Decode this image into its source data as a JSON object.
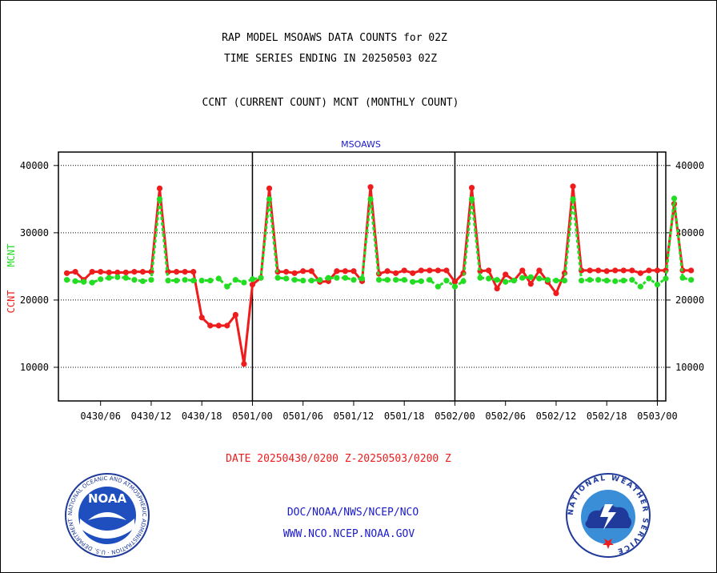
{
  "header": {
    "title_line1": "RAP MODEL MSOAWS DATA COUNTS for 02Z",
    "title_line2": "TIME SERIES ENDING IN 20250503 02Z",
    "legend_line": "CCNT (CURRENT COUNT) MCNT (MONTHLY COUNT)"
  },
  "footer": {
    "date_range": "DATE 20250430/0200 Z-20250503/0200 Z",
    "org_line": "DOC/NOAA/NWS/NCEP/NCO",
    "url_line": "WWW.NCO.NCEP.NOAA.GOV",
    "noaa_logo_text": "NOAA",
    "noaa_ring_text": "NATIONAL OCEANIC AND ATMOSPHERIC ADMINISTRATION · U.S. DEPARTMENT OF COMMERCE ·",
    "nws_ring_text": "NATIONAL WEATHER SERVICE"
  },
  "colors": {
    "ccnt": "#ee1c1c",
    "mcnt": "#22dd22",
    "title": "#000000",
    "date_text": "#ee1c1c",
    "org_text": "#1a1acc"
  },
  "chart_data": {
    "type": "line",
    "title": "MSOAWS",
    "ylabel_parts": [
      {
        "text": "CCNT",
        "color": "#ee1c1c"
      },
      {
        "text": "MCNT",
        "color": "#22dd22"
      }
    ],
    "x_tick_labels": [
      "0430/06",
      "0430/12",
      "0430/18",
      "0501/00",
      "0501/06",
      "0501/12",
      "0501/18",
      "0502/00",
      "0502/06",
      "0502/12",
      "0502/18",
      "0503/00"
    ],
    "x_tick_hours": [
      4,
      10,
      16,
      22,
      28,
      34,
      40,
      46,
      52,
      58,
      64,
      70
    ],
    "x_range_hours": [
      -1,
      71
    ],
    "day_boundaries_hours": [
      22,
      46,
      70
    ],
    "ylim": [
      5000,
      42000
    ],
    "y_ticks": [
      10000,
      20000,
      30000,
      40000
    ],
    "grid": "horizontal dotted",
    "series": [
      {
        "name": "CCNT",
        "color": "#ee1c1c",
        "values": [
          24000,
          24200,
          23000,
          24200,
          24200,
          24100,
          24100,
          24100,
          24200,
          24200,
          24200,
          36600,
          24200,
          24200,
          24200,
          24200,
          17400,
          16200,
          16200,
          16200,
          17800,
          10500,
          22300,
          23300,
          36600,
          24200,
          24200,
          24000,
          24300,
          24300,
          22700,
          22800,
          24300,
          24300,
          24300,
          22800,
          36800,
          23900,
          24300,
          24000,
          24400,
          24000,
          24400,
          24400,
          24400,
          24400,
          22700,
          24000,
          36700,
          24300,
          24400,
          21700,
          23800,
          22900,
          24400,
          22400,
          24400,
          22700,
          21000,
          24000,
          36900,
          24400,
          24400,
          24400,
          24300,
          24400,
          24400,
          24400,
          24000,
          24400,
          24400,
          24400,
          34300,
          24400,
          24400
        ]
      },
      {
        "name": "MCNT",
        "color": "#22dd22",
        "values": [
          23000,
          22800,
          22700,
          22600,
          23100,
          23300,
          23400,
          23300,
          23000,
          22800,
          23000,
          35000,
          22900,
          22900,
          23000,
          22900,
          22900,
          22900,
          23200,
          22000,
          23000,
          22600,
          23100,
          23300,
          35000,
          23300,
          23200,
          23000,
          22900,
          22900,
          23000,
          23300,
          23300,
          23300,
          23000,
          23200,
          35000,
          23000,
          23000,
          23000,
          23000,
          22700,
          22800,
          23000,
          22000,
          22900,
          22000,
          22800,
          35000,
          23300,
          23200,
          23000,
          22700,
          22900,
          23300,
          23400,
          23200,
          23000,
          22900,
          22900,
          35000,
          22900,
          23000,
          23000,
          22900,
          22800,
          22900,
          23000,
          22000,
          23200,
          22300,
          23200,
          35100,
          23300,
          23000
        ]
      }
    ]
  }
}
